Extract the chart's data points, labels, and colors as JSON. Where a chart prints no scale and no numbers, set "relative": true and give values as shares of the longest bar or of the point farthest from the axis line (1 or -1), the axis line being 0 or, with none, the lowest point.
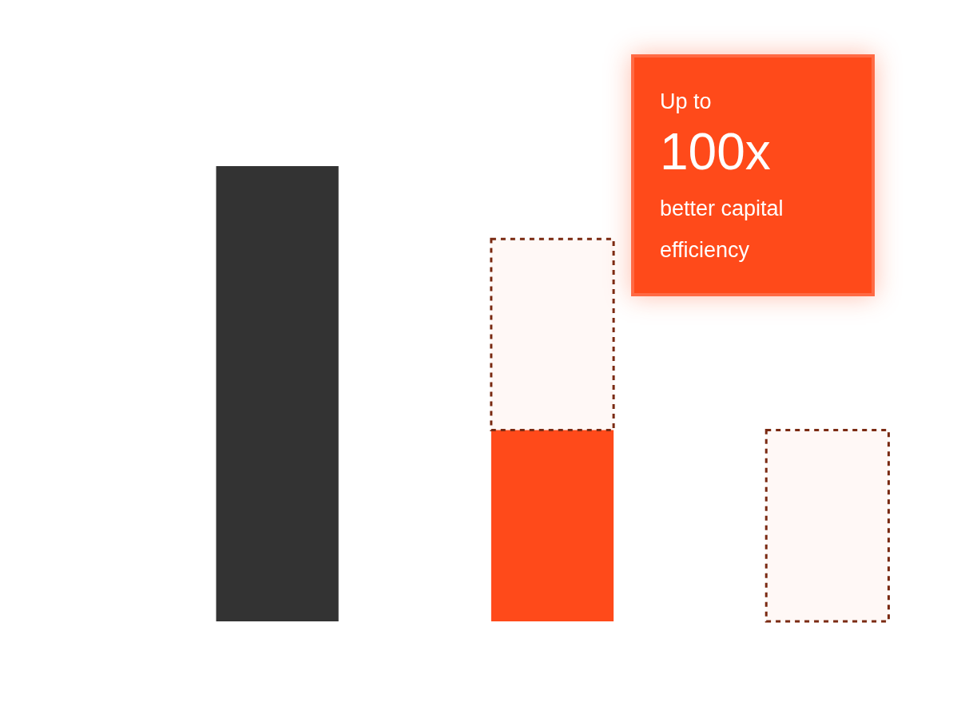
{
  "chart_data": {
    "type": "bar",
    "relative": true,
    "stacked": true,
    "legend": false,
    "tick_labels": false,
    "categories": [
      null,
      null,
      null
    ],
    "series": [
      {
        "colors": [
          "#333333",
          "#ff4a1a",
          "#ff4a1a"
        ],
        "values": [
          1,
          0.42,
          0
        ]
      },
      {
        "color": "#7a2a12",
        "line_style": "dashed",
        "values": [
          0,
          0.42,
          0.42
        ]
      }
    ],
    "annotations": [
      "Up to",
      "100x",
      "better capital efficiency"
    ]
  }
}
